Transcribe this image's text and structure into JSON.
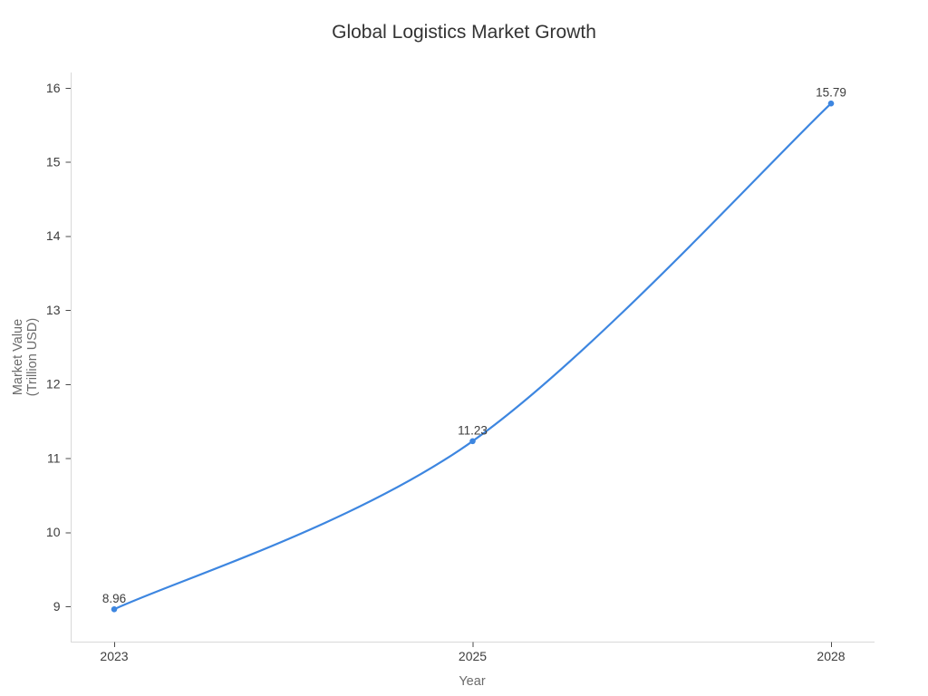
{
  "title": "Global Logistics Market Growth",
  "colors": {
    "line": "#3d86e0",
    "title_text": "#333333",
    "tick_label": "#3d3d3d",
    "axis_title": "#6b6b6b",
    "spine": "#d9d9d9",
    "tick_mark": "#4a4a4a",
    "background": "#ffffff"
  },
  "chart_data": {
    "type": "line",
    "title": "Global Logistics Market Growth",
    "xlabel": "Year",
    "ylabel": "Market Value (Trillion USD)",
    "ylabel_lines": [
      "Market Value",
      "(Trillion USD)"
    ],
    "categories": [
      "2023",
      "2025",
      "2028"
    ],
    "values": [
      8.96,
      11.23,
      15.79
    ],
    "point_labels": [
      "8.96",
      "11.23",
      "15.79"
    ],
    "y_ticks": [
      "9",
      "10",
      "11",
      "12",
      "13",
      "14",
      "15",
      "16"
    ],
    "y_tick_values": [
      9,
      10,
      11,
      12,
      13,
      14,
      15,
      16
    ],
    "ylim": [
      8.5,
      16.2
    ],
    "grid": false,
    "legend": false,
    "line_shape": "spline",
    "markers": true,
    "point_labels_position": "above"
  }
}
